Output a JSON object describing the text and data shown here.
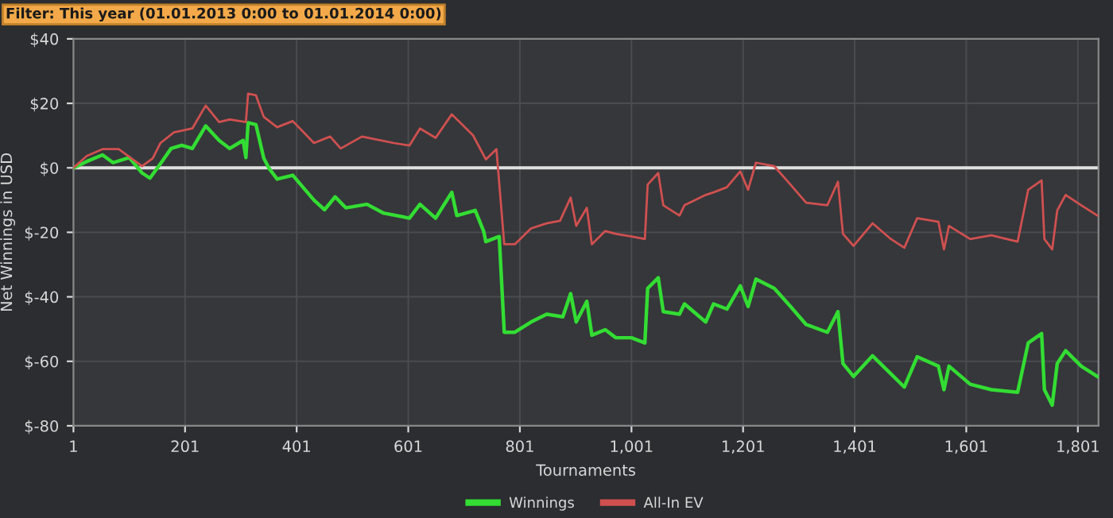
{
  "chart_data": {
    "type": "line",
    "title": "Filter: This year (01.01.2013 0:00 to 01.01.2014 0:00)",
    "xlabel": "Tournaments",
    "ylabel": "Net Winnings in USD",
    "series": [
      {
        "name": "Winnings",
        "color": "#33dd33",
        "x": [
          1,
          25,
          53,
          72,
          101,
          124,
          138,
          157,
          176,
          195,
          214,
          238,
          262,
          281,
          305,
          310,
          314,
          328,
          342,
          352,
          366,
          394,
          432,
          451,
          470,
          489,
          527,
          556,
          603,
          622,
          650,
          679,
          688,
          721,
          736,
          740,
          764,
          773,
          792,
          821,
          849,
          878,
          892,
          902,
          921,
          930,
          954,
          973,
          1001,
          1025,
          1030,
          1049,
          1058,
          1087,
          1096,
          1134,
          1148,
          1172,
          1196,
          1210,
          1224,
          1257,
          1286,
          1314,
          1352,
          1371,
          1380,
          1399,
          1433,
          1466,
          1490,
          1513,
          1551,
          1561,
          1570,
          1608,
          1646,
          1693,
          1712,
          1736,
          1741,
          1755,
          1764,
          1779,
          1807,
          1836
        ],
        "values": [
          0,
          2,
          4,
          1.6,
          3.2,
          -1.6,
          -3.2,
          1.3,
          6,
          7,
          6,
          13,
          8.5,
          6,
          8.5,
          3.2,
          14,
          13.4,
          3,
          -0.3,
          -3.5,
          -2.3,
          -10,
          -13,
          -9,
          -12.4,
          -11.3,
          -14,
          -15.6,
          -11.3,
          -15.6,
          -7.6,
          -14.8,
          -13.2,
          -19.6,
          -22.9,
          -21.3,
          -51,
          -51,
          -47.8,
          -45.4,
          -46.2,
          -39,
          -47.8,
          -41.4,
          -51.9,
          -50.2,
          -52.7,
          -52.7,
          -54.3,
          -37.4,
          -34.1,
          -44.6,
          -45.4,
          -42.2,
          -47.8,
          -42.2,
          -43.8,
          -36.6,
          -43,
          -34.5,
          -37.4,
          -43,
          -48.6,
          -51,
          -44.6,
          -60.7,
          -64.7,
          -58.3,
          -63.9,
          -68,
          -58.6,
          -61.5,
          -68.8,
          -61.5,
          -67.1,
          -68.8,
          -69.6,
          -54.3,
          -51.4,
          -68.8,
          -73.6,
          -60.7,
          -56.7,
          -61.5,
          -64.7
        ]
      },
      {
        "name": "All-In EV",
        "color": "#d05050",
        "x": [
          1,
          25,
          53,
          82,
          124,
          143,
          157,
          181,
          214,
          238,
          262,
          281,
          310,
          314,
          328,
          342,
          366,
          394,
          432,
          461,
          480,
          518,
          575,
          603,
          622,
          650,
          679,
          717,
          740,
          759,
          773,
          792,
          821,
          849,
          873,
          892,
          902,
          921,
          930,
          954,
          973,
          1001,
          1025,
          1030,
          1049,
          1058,
          1087,
          1096,
          1134,
          1148,
          1172,
          1196,
          1210,
          1224,
          1257,
          1286,
          1314,
          1352,
          1371,
          1380,
          1399,
          1433,
          1466,
          1490,
          1513,
          1551,
          1561,
          1570,
          1608,
          1646,
          1693,
          1712,
          1736,
          1741,
          1755,
          1764,
          1779,
          1807,
          1836
        ],
        "values": [
          0,
          3.7,
          5.8,
          5.8,
          0.5,
          2.9,
          7.7,
          11,
          12.2,
          19.3,
          14.2,
          15,
          14.2,
          23,
          22.5,
          15.8,
          12.6,
          14.5,
          7.7,
          9.7,
          6,
          9.7,
          7.7,
          6.9,
          12.2,
          9.3,
          16.6,
          10.1,
          2.6,
          5.8,
          -23.7,
          -23.7,
          -18.8,
          -17.2,
          -16.4,
          -9.2,
          -18,
          -12.4,
          -23.7,
          -19.6,
          -20.5,
          -21.3,
          -22.1,
          -5.2,
          -1.6,
          -11.6,
          -14.8,
          -11.6,
          -8.4,
          -7.6,
          -6,
          -1.1,
          -6.8,
          1.6,
          0.5,
          -5.2,
          -10.8,
          -11.6,
          -4.3,
          -20.5,
          -24.2,
          -17.2,
          -22.1,
          -24.8,
          -15.6,
          -16.7,
          -25.3,
          -18,
          -22.1,
          -20.9,
          -22.9,
          -6.8,
          -3.9,
          -22.1,
          -25.3,
          -13.2,
          -8.4,
          -11.6,
          -14.8
        ]
      }
    ],
    "xlim": [
      1,
      1838
    ],
    "xticks": [
      1,
      201,
      401,
      601,
      801,
      {
        "value": 1001,
        "label": "1,001"
      },
      {
        "value": 1201,
        "label": "1,201"
      },
      {
        "value": 1401,
        "label": "1,401"
      },
      {
        "value": 1601,
        "label": "1,601"
      },
      {
        "value": 1801,
        "label": "1,801"
      }
    ],
    "ylim": [
      -80,
      40
    ],
    "yticks": [
      {
        "value": 40,
        "label": "$40"
      },
      {
        "value": 20,
        "label": "$20"
      },
      {
        "value": 0,
        "label": "$0"
      },
      {
        "value": -20,
        "label": "$-20"
      },
      {
        "value": -40,
        "label": "$-40"
      },
      {
        "value": -60,
        "label": "$-60"
      },
      {
        "value": -80,
        "label": "$-80"
      }
    ],
    "ref_lines": [
      {
        "axis": "y",
        "value": 0,
        "color": "#e0e0e0"
      }
    ],
    "grid": true,
    "legend": "bottom",
    "marker": "none",
    "line_style": "solid"
  }
}
